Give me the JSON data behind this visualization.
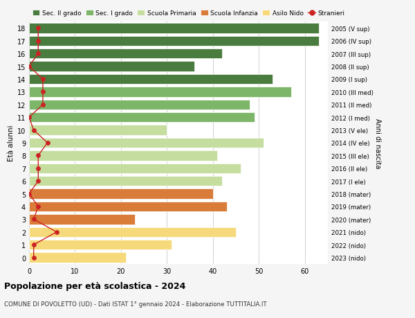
{
  "ages": [
    18,
    17,
    16,
    15,
    14,
    13,
    12,
    11,
    10,
    9,
    8,
    7,
    6,
    5,
    4,
    3,
    2,
    1,
    0
  ],
  "right_labels": [
    "2005 (V sup)",
    "2006 (IV sup)",
    "2007 (III sup)",
    "2008 (II sup)",
    "2009 (I sup)",
    "2010 (III med)",
    "2011 (II med)",
    "2012 (I med)",
    "2013 (V ele)",
    "2014 (IV ele)",
    "2015 (III ele)",
    "2016 (II ele)",
    "2017 (I ele)",
    "2018 (mater)",
    "2019 (mater)",
    "2020 (mater)",
    "2021 (nido)",
    "2022 (nido)",
    "2023 (nido)"
  ],
  "bar_values": [
    63,
    63,
    42,
    36,
    53,
    57,
    48,
    49,
    30,
    51,
    41,
    46,
    42,
    40,
    43,
    23,
    45,
    31,
    21
  ],
  "stranieri_values": [
    2,
    2,
    2,
    0,
    3,
    3,
    3,
    0,
    1,
    4,
    2,
    2,
    2,
    0,
    2,
    1,
    6,
    1,
    1
  ],
  "bar_colors": [
    "#4a7c3f",
    "#4a7c3f",
    "#4a7c3f",
    "#4a7c3f",
    "#4a7c3f",
    "#7db569",
    "#7db569",
    "#7db569",
    "#c5dea0",
    "#c5dea0",
    "#c5dea0",
    "#c5dea0",
    "#c5dea0",
    "#d97c3a",
    "#d97c3a",
    "#d97c3a",
    "#f5d97a",
    "#f5d97a",
    "#f5d97a"
  ],
  "legend_labels": [
    "Sec. II grado",
    "Sec. I grado",
    "Scuola Primaria",
    "Scuola Infanzia",
    "Asilo Nido",
    "Stranieri"
  ],
  "legend_colors": [
    "#4a7c3f",
    "#7db569",
    "#c5dea0",
    "#d97c3a",
    "#f5d97a",
    "#cc2222"
  ],
  "ylabel": "Età alunni",
  "right_ylabel": "Anni di nascita",
  "xlim": [
    0,
    65
  ],
  "title": "Popolazione per età scolastica - 2024",
  "subtitle": "COMUNE DI POVOLETTO (UD) - Dati ISTAT 1° gennaio 2024 - Elaborazione TUTTITALIA.IT",
  "background_color": "#f5f5f5",
  "bar_background": "#ffffff",
  "stranieri_color": "#cc2222",
  "grid_color": "#d0d0d0"
}
